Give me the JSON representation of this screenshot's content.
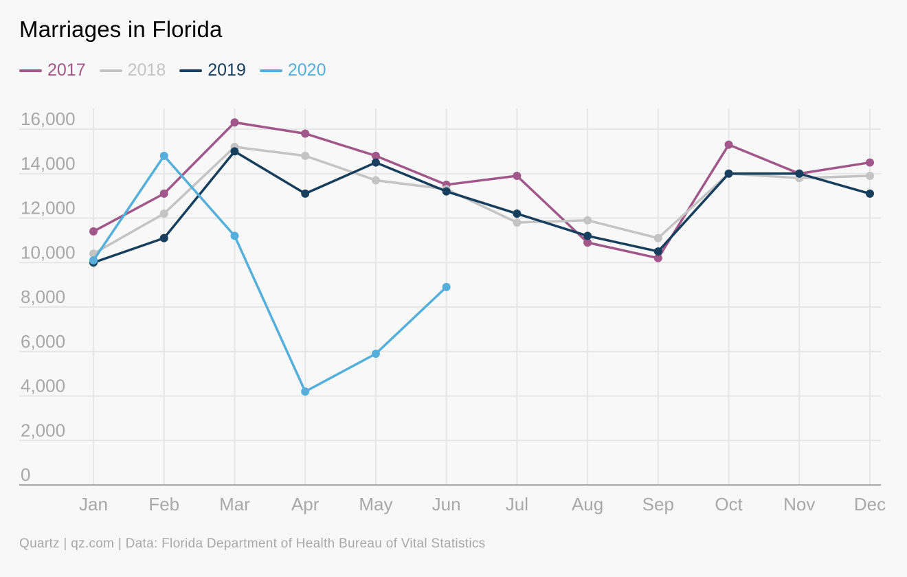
{
  "chart_data": {
    "type": "line",
    "title": "Marriages in Florida",
    "categories": [
      "Jan",
      "Feb",
      "Mar",
      "Apr",
      "May",
      "Jun",
      "Jul",
      "Aug",
      "Sep",
      "Oct",
      "Nov",
      "Dec"
    ],
    "ylim": [
      0,
      16000
    ],
    "yticks": [
      {
        "value": 0,
        "label": "0"
      },
      {
        "value": 2000,
        "label": "2,000"
      },
      {
        "value": 4000,
        "label": "4,000"
      },
      {
        "value": 6000,
        "label": "6,000"
      },
      {
        "value": 8000,
        "label": "8,000"
      },
      {
        "value": 10000,
        "label": "10,000"
      },
      {
        "value": 12000,
        "label": "12,000"
      },
      {
        "value": 14000,
        "label": "14,000"
      },
      {
        "value": 16000,
        "label": "16,000"
      }
    ],
    "grid": true,
    "legend_position": "top-left",
    "series": [
      {
        "name": "2017",
        "color": "#a2578a",
        "values": [
          11400,
          13100,
          16300,
          15800,
          14800,
          13500,
          13900,
          10900,
          10200,
          15300,
          14000,
          14500
        ]
      },
      {
        "name": "2018",
        "color": "#c4c4c4",
        "values": [
          10400,
          12200,
          15200,
          14800,
          13700,
          13300,
          11800,
          11900,
          11100,
          14000,
          13800,
          13900
        ]
      },
      {
        "name": "2019",
        "color": "#183e5e",
        "values": [
          10000,
          11100,
          15000,
          13100,
          14500,
          13200,
          12200,
          11200,
          10500,
          14000,
          14000,
          13100
        ]
      },
      {
        "name": "2020",
        "color": "#56afdb",
        "values": [
          10100,
          14800,
          11200,
          4200,
          5900,
          8900,
          null,
          null,
          null,
          null,
          null,
          null
        ]
      }
    ]
  },
  "source": "Quartz | qz.com | Data: Florida Department of Health Bureau of Vital Statistics"
}
